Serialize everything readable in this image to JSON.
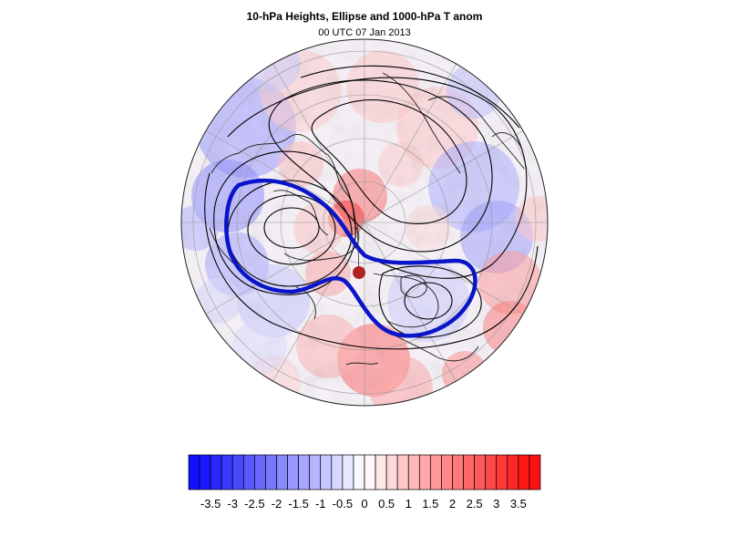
{
  "header": {
    "title": "10-hPa Heights, Ellipse and 1000-hPa T anom",
    "subtitle": "00 UTC 07 Jan 2013"
  },
  "colorbar": {
    "labels": [
      "-3.5",
      "-3",
      "-2.5",
      "-2",
      "-1.5",
      "-1",
      "-0.5",
      "0",
      "0.5",
      "1",
      "1.5",
      "2",
      "2.5",
      "3",
      "3.5"
    ],
    "min": -4,
    "max": 4,
    "step": 0.25,
    "low_color": "#1010ff",
    "mid_color": "#ffffff",
    "high_color": "#ff1010"
  },
  "map": {
    "projection": "polar stereographic (north pole)",
    "field": "1000-hPa temperature anomaly (shaded)",
    "contours": "10-hPa heights (black)",
    "ellipse_color": "#0a14c8",
    "centroid_color": "#b22222"
  }
}
